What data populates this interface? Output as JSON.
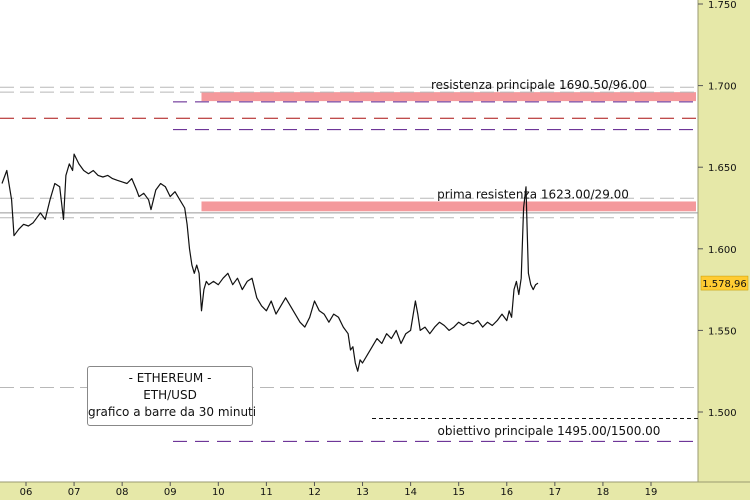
{
  "chart_data": {
    "type": "line",
    "title": "",
    "xlabel": "",
    "ylabel": "",
    "x_ticks": [
      "06",
      "07",
      "08",
      "09",
      "10",
      "11",
      "12",
      "13",
      "14",
      "15",
      "16",
      "17",
      "18",
      "19"
    ],
    "y_ticks": [
      "1.500",
      "1.550",
      "1.600",
      "1.650",
      "1.700",
      "1.750"
    ],
    "ylim": [
      1470,
      1755
    ],
    "xlim": [
      5.5,
      20.0
    ],
    "grid": false,
    "series": [
      {
        "values": [
          [
            5.5,
            1640
          ],
          [
            5.6,
            1648
          ],
          [
            5.7,
            1630
          ],
          [
            5.75,
            1608
          ],
          [
            5.85,
            1612
          ],
          [
            5.95,
            1615
          ],
          [
            6.05,
            1614
          ],
          [
            6.15,
            1616
          ],
          [
            6.3,
            1622
          ],
          [
            6.4,
            1618
          ],
          [
            6.5,
            1630
          ],
          [
            6.6,
            1640
          ],
          [
            6.7,
            1638
          ],
          [
            6.78,
            1618
          ],
          [
            6.83,
            1645
          ],
          [
            6.9,
            1652
          ],
          [
            6.97,
            1648
          ],
          [
            7.0,
            1658
          ],
          [
            7.1,
            1652
          ],
          [
            7.2,
            1648
          ],
          [
            7.3,
            1646
          ],
          [
            7.4,
            1648
          ],
          [
            7.5,
            1645
          ],
          [
            7.6,
            1644
          ],
          [
            7.7,
            1645
          ],
          [
            7.8,
            1643
          ],
          [
            7.9,
            1642
          ],
          [
            8.0,
            1641
          ],
          [
            8.1,
            1640
          ],
          [
            8.2,
            1643
          ],
          [
            8.3,
            1636
          ],
          [
            8.35,
            1632
          ],
          [
            8.45,
            1634
          ],
          [
            8.55,
            1630
          ],
          [
            8.6,
            1624
          ],
          [
            8.65,
            1630
          ],
          [
            8.7,
            1636
          ],
          [
            8.8,
            1640
          ],
          [
            8.9,
            1638
          ],
          [
            9.0,
            1632
          ],
          [
            9.1,
            1635
          ],
          [
            9.2,
            1630
          ],
          [
            9.3,
            1625
          ],
          [
            9.35,
            1615
          ],
          [
            9.4,
            1600
          ],
          [
            9.45,
            1590
          ],
          [
            9.5,
            1585
          ],
          [
            9.55,
            1590
          ],
          [
            9.6,
            1585
          ],
          [
            9.65,
            1562
          ],
          [
            9.7,
            1575
          ],
          [
            9.75,
            1580
          ],
          [
            9.8,
            1578
          ],
          [
            9.9,
            1580
          ],
          [
            10.0,
            1578
          ],
          [
            10.1,
            1582
          ],
          [
            10.2,
            1585
          ],
          [
            10.3,
            1578
          ],
          [
            10.4,
            1582
          ],
          [
            10.5,
            1575
          ],
          [
            10.6,
            1580
          ],
          [
            10.7,
            1582
          ],
          [
            10.8,
            1570
          ],
          [
            10.9,
            1565
          ],
          [
            11.0,
            1562
          ],
          [
            11.1,
            1568
          ],
          [
            11.2,
            1560
          ],
          [
            11.3,
            1565
          ],
          [
            11.4,
            1570
          ],
          [
            11.5,
            1565
          ],
          [
            11.6,
            1560
          ],
          [
            11.7,
            1555
          ],
          [
            11.8,
            1552
          ],
          [
            11.9,
            1558
          ],
          [
            12.0,
            1568
          ],
          [
            12.1,
            1562
          ],
          [
            12.2,
            1560
          ],
          [
            12.3,
            1555
          ],
          [
            12.4,
            1560
          ],
          [
            12.5,
            1558
          ],
          [
            12.6,
            1552
          ],
          [
            12.7,
            1548
          ],
          [
            12.75,
            1538
          ],
          [
            12.8,
            1540
          ],
          [
            12.85,
            1530
          ],
          [
            12.9,
            1525
          ],
          [
            12.95,
            1532
          ],
          [
            13.0,
            1530
          ],
          [
            13.1,
            1535
          ],
          [
            13.2,
            1540
          ],
          [
            13.3,
            1545
          ],
          [
            13.4,
            1542
          ],
          [
            13.5,
            1548
          ],
          [
            13.6,
            1545
          ],
          [
            13.7,
            1550
          ],
          [
            13.8,
            1542
          ],
          [
            13.9,
            1548
          ],
          [
            14.0,
            1550
          ],
          [
            14.1,
            1568
          ],
          [
            14.15,
            1560
          ],
          [
            14.2,
            1550
          ],
          [
            14.3,
            1552
          ],
          [
            14.4,
            1548
          ],
          [
            14.5,
            1552
          ],
          [
            14.6,
            1555
          ],
          [
            14.7,
            1553
          ],
          [
            14.8,
            1550
          ],
          [
            14.9,
            1552
          ],
          [
            15.0,
            1555
          ],
          [
            15.1,
            1553
          ],
          [
            15.2,
            1555
          ],
          [
            15.3,
            1554
          ],
          [
            15.4,
            1556
          ],
          [
            15.5,
            1552
          ],
          [
            15.6,
            1555
          ],
          [
            15.7,
            1553
          ],
          [
            15.8,
            1556
          ],
          [
            15.9,
            1560
          ],
          [
            16.0,
            1556
          ],
          [
            16.05,
            1562
          ],
          [
            16.1,
            1558
          ],
          [
            16.15,
            1575
          ],
          [
            16.2,
            1580
          ],
          [
            16.25,
            1572
          ],
          [
            16.3,
            1582
          ],
          [
            16.35,
            1625
          ],
          [
            16.4,
            1638
          ],
          [
            16.42,
            1615
          ],
          [
            16.45,
            1585
          ],
          [
            16.5,
            1578
          ],
          [
            16.55,
            1575
          ],
          [
            16.6,
            1578
          ],
          [
            16.65,
            1579
          ]
        ]
      }
    ],
    "last_price_label": "1.578,96",
    "annotations": [
      {
        "text": "resistenza principale 1690.50/96.00",
        "value": 1693
      },
      {
        "text": "prima resistenza 1623.00/29.00",
        "value": 1626
      },
      {
        "text": "obiettivo principale 1495.00/1500.00",
        "value": 1497
      }
    ],
    "levels": {
      "zone_main_resistance": [
        1690.5,
        1696
      ],
      "zone_first_resistance": [
        1623,
        1629
      ],
      "grey_solid": 1622,
      "black_dashed_target": 1496,
      "purple_dashed": [
        1690,
        1673,
        1482
      ],
      "red_dashed": [
        1680
      ],
      "grey_dashed": [
        1696,
        1699,
        1631,
        1619,
        1515
      ]
    },
    "colors": {
      "resistance_zone": "#f4999c",
      "price_panel": "#e6e8a8",
      "price_line": "#111111",
      "purple_level": "#5a1a8a",
      "red_level": "#aa1111",
      "last_price_badge": "#ffcc33"
    }
  },
  "info_box": {
    "line1": "- ETHEREUM -",
    "line2": "ETH/USD",
    "line3": "grafico a barre da 30 minuti"
  }
}
